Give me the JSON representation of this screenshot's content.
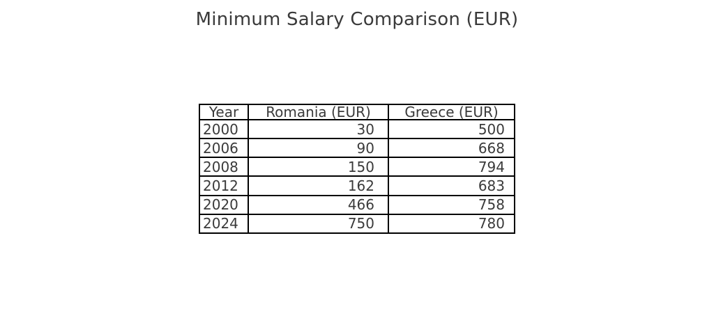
{
  "title": "Minimum Salary Comparison (EUR)",
  "colors": {
    "background": "#ffffff",
    "text": "#3a3a3a",
    "table_border": "#000000"
  },
  "chart_data": {
    "type": "table",
    "title": "Minimum Salary Comparison (EUR)",
    "columns": [
      "Year",
      "Romania (EUR)",
      "Greece (EUR)"
    ],
    "rows": [
      {
        "year": "2000",
        "romania": "30",
        "greece": "500"
      },
      {
        "year": "2006",
        "romania": "90",
        "greece": "668"
      },
      {
        "year": "2008",
        "romania": "150",
        "greece": "794"
      },
      {
        "year": "2012",
        "romania": "162",
        "greece": "683"
      },
      {
        "year": "2020",
        "romania": "466",
        "greece": "758"
      },
      {
        "year": "2024",
        "romania": "750",
        "greece": "780"
      }
    ],
    "layout": {
      "header_align": "center",
      "year_align": "left",
      "value_align": "right",
      "grid": true,
      "legend": "none"
    }
  }
}
